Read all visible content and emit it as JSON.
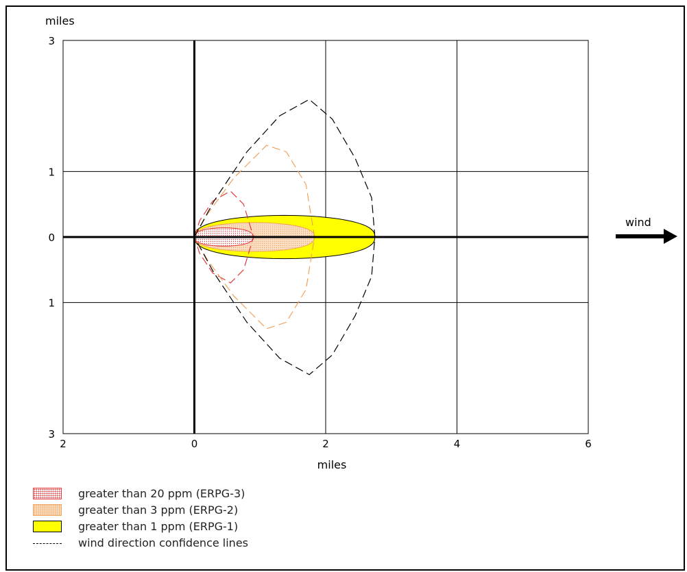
{
  "chart_data": {
    "type": "area",
    "xlabel": "miles",
    "ylabel": "miles",
    "xlim": [
      -2,
      6
    ],
    "ylim": [
      -3,
      3
    ],
    "x_ticks": [
      {
        "value": -2,
        "label": "2"
      },
      {
        "value": 0,
        "label": "0"
      },
      {
        "value": 2,
        "label": "2"
      },
      {
        "value": 4,
        "label": "4"
      },
      {
        "value": 6,
        "label": "6"
      }
    ],
    "y_ticks": [
      {
        "value": 3,
        "label": "3"
      },
      {
        "value": 1,
        "label": "1"
      },
      {
        "value": 0,
        "label": "0"
      },
      {
        "value": -1,
        "label": "1"
      },
      {
        "value": -3,
        "label": "3"
      }
    ],
    "grid": true,
    "wind_label": "wind",
    "threat_zones": [
      {
        "name": "greater than 20 ppm (ERPG-3)",
        "color": "#e23a3a",
        "fill": "#ffffff",
        "pattern": "dots",
        "length": 0.9,
        "half_width": 0.14
      },
      {
        "name": "greater than 3 ppm (ERPG-2)",
        "color": "#f0a25a",
        "fill": "#fbe1c8",
        "pattern": "dots",
        "length": 1.83,
        "half_width": 0.22
      },
      {
        "name": "greater than 1 ppm (ERPG-1)",
        "color": "#000000",
        "fill": "#ffff00",
        "pattern": "solid",
        "length": 2.75,
        "half_width": 0.33
      }
    ],
    "confidence_lines": [
      {
        "zone": "ERPG-3",
        "color": "#e23a3a",
        "upper": [
          [
            0,
            0
          ],
          [
            0.08,
            0.25
          ],
          [
            0.28,
            0.55
          ],
          [
            0.55,
            0.7
          ],
          [
            0.75,
            0.5
          ],
          [
            0.9,
            0
          ]
        ]
      },
      {
        "zone": "ERPG-2",
        "color": "#f0a25a",
        "upper": [
          [
            0,
            0
          ],
          [
            0.2,
            0.35
          ],
          [
            0.6,
            0.9
          ],
          [
            1.1,
            1.4
          ],
          [
            1.4,
            1.3
          ],
          [
            1.7,
            0.8
          ],
          [
            1.83,
            0
          ]
        ]
      },
      {
        "zone": "ERPG-1",
        "color": "#000000",
        "upper": [
          [
            0,
            0
          ],
          [
            0.3,
            0.55
          ],
          [
            0.8,
            1.3
          ],
          [
            1.3,
            1.85
          ],
          [
            1.75,
            2.1
          ],
          [
            2.1,
            1.8
          ],
          [
            2.45,
            1.2
          ],
          [
            2.7,
            0.6
          ],
          [
            2.75,
            0
          ]
        ]
      }
    ],
    "legend": [
      {
        "label": "greater than 20 ppm (ERPG-3)",
        "key": "erpg3"
      },
      {
        "label": "greater than 3 ppm (ERPG-2)",
        "key": "erpg2"
      },
      {
        "label": "greater than 1 ppm (ERPG-1)",
        "key": "erpg1"
      },
      {
        "label": "wind direction confidence lines",
        "key": "line"
      }
    ]
  }
}
